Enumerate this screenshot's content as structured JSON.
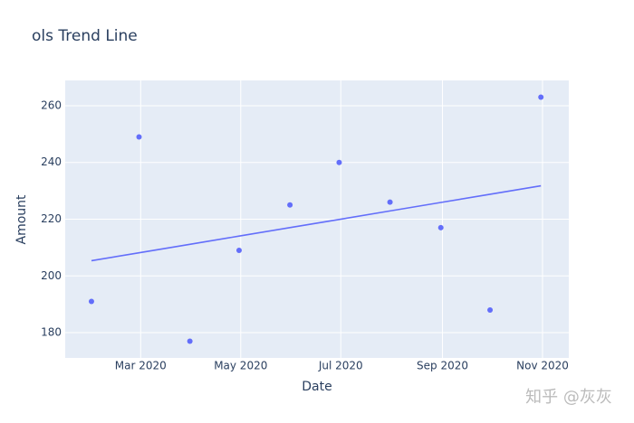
{
  "chart_data": {
    "type": "scatter",
    "title": "ols Trend Line",
    "x_label": "Date",
    "y_label": "Amount",
    "x": [
      "2020-01-31",
      "2020-02-29",
      "2020-03-31",
      "2020-04-30",
      "2020-05-31",
      "2020-06-30",
      "2020-07-31",
      "2020-08-31",
      "2020-09-30",
      "2020-10-31"
    ],
    "series": [
      {
        "name": "Amount",
        "mode": "markers",
        "color": "#636efa",
        "values": [
          191,
          249,
          177,
          209,
          225,
          240,
          226,
          217,
          188,
          263
        ]
      },
      {
        "name": "OLS trendline",
        "mode": "lines",
        "color": "#636efa",
        "values": [
          205.37,
          208.16,
          211.15,
          214.04,
          217.03,
          219.91,
          222.9,
          225.89,
          228.78,
          231.76
        ]
      }
    ],
    "xlim": [
      "2020-01-15",
      "2020-11-17"
    ],
    "xticks": [
      {
        "value": "2020-03-01",
        "label": "Mar 2020"
      },
      {
        "value": "2020-05-01",
        "label": "May 2020"
      },
      {
        "value": "2020-07-01",
        "label": "Jul 2020"
      },
      {
        "value": "2020-09-01",
        "label": "Sep 2020"
      },
      {
        "value": "2020-11-01",
        "label": "Nov 2020"
      }
    ],
    "ylim": [
      171.1,
      268.9
    ],
    "yticks": [
      180,
      200,
      220,
      240,
      260
    ],
    "grid": true,
    "watermark": "知乎 @灰灰"
  }
}
